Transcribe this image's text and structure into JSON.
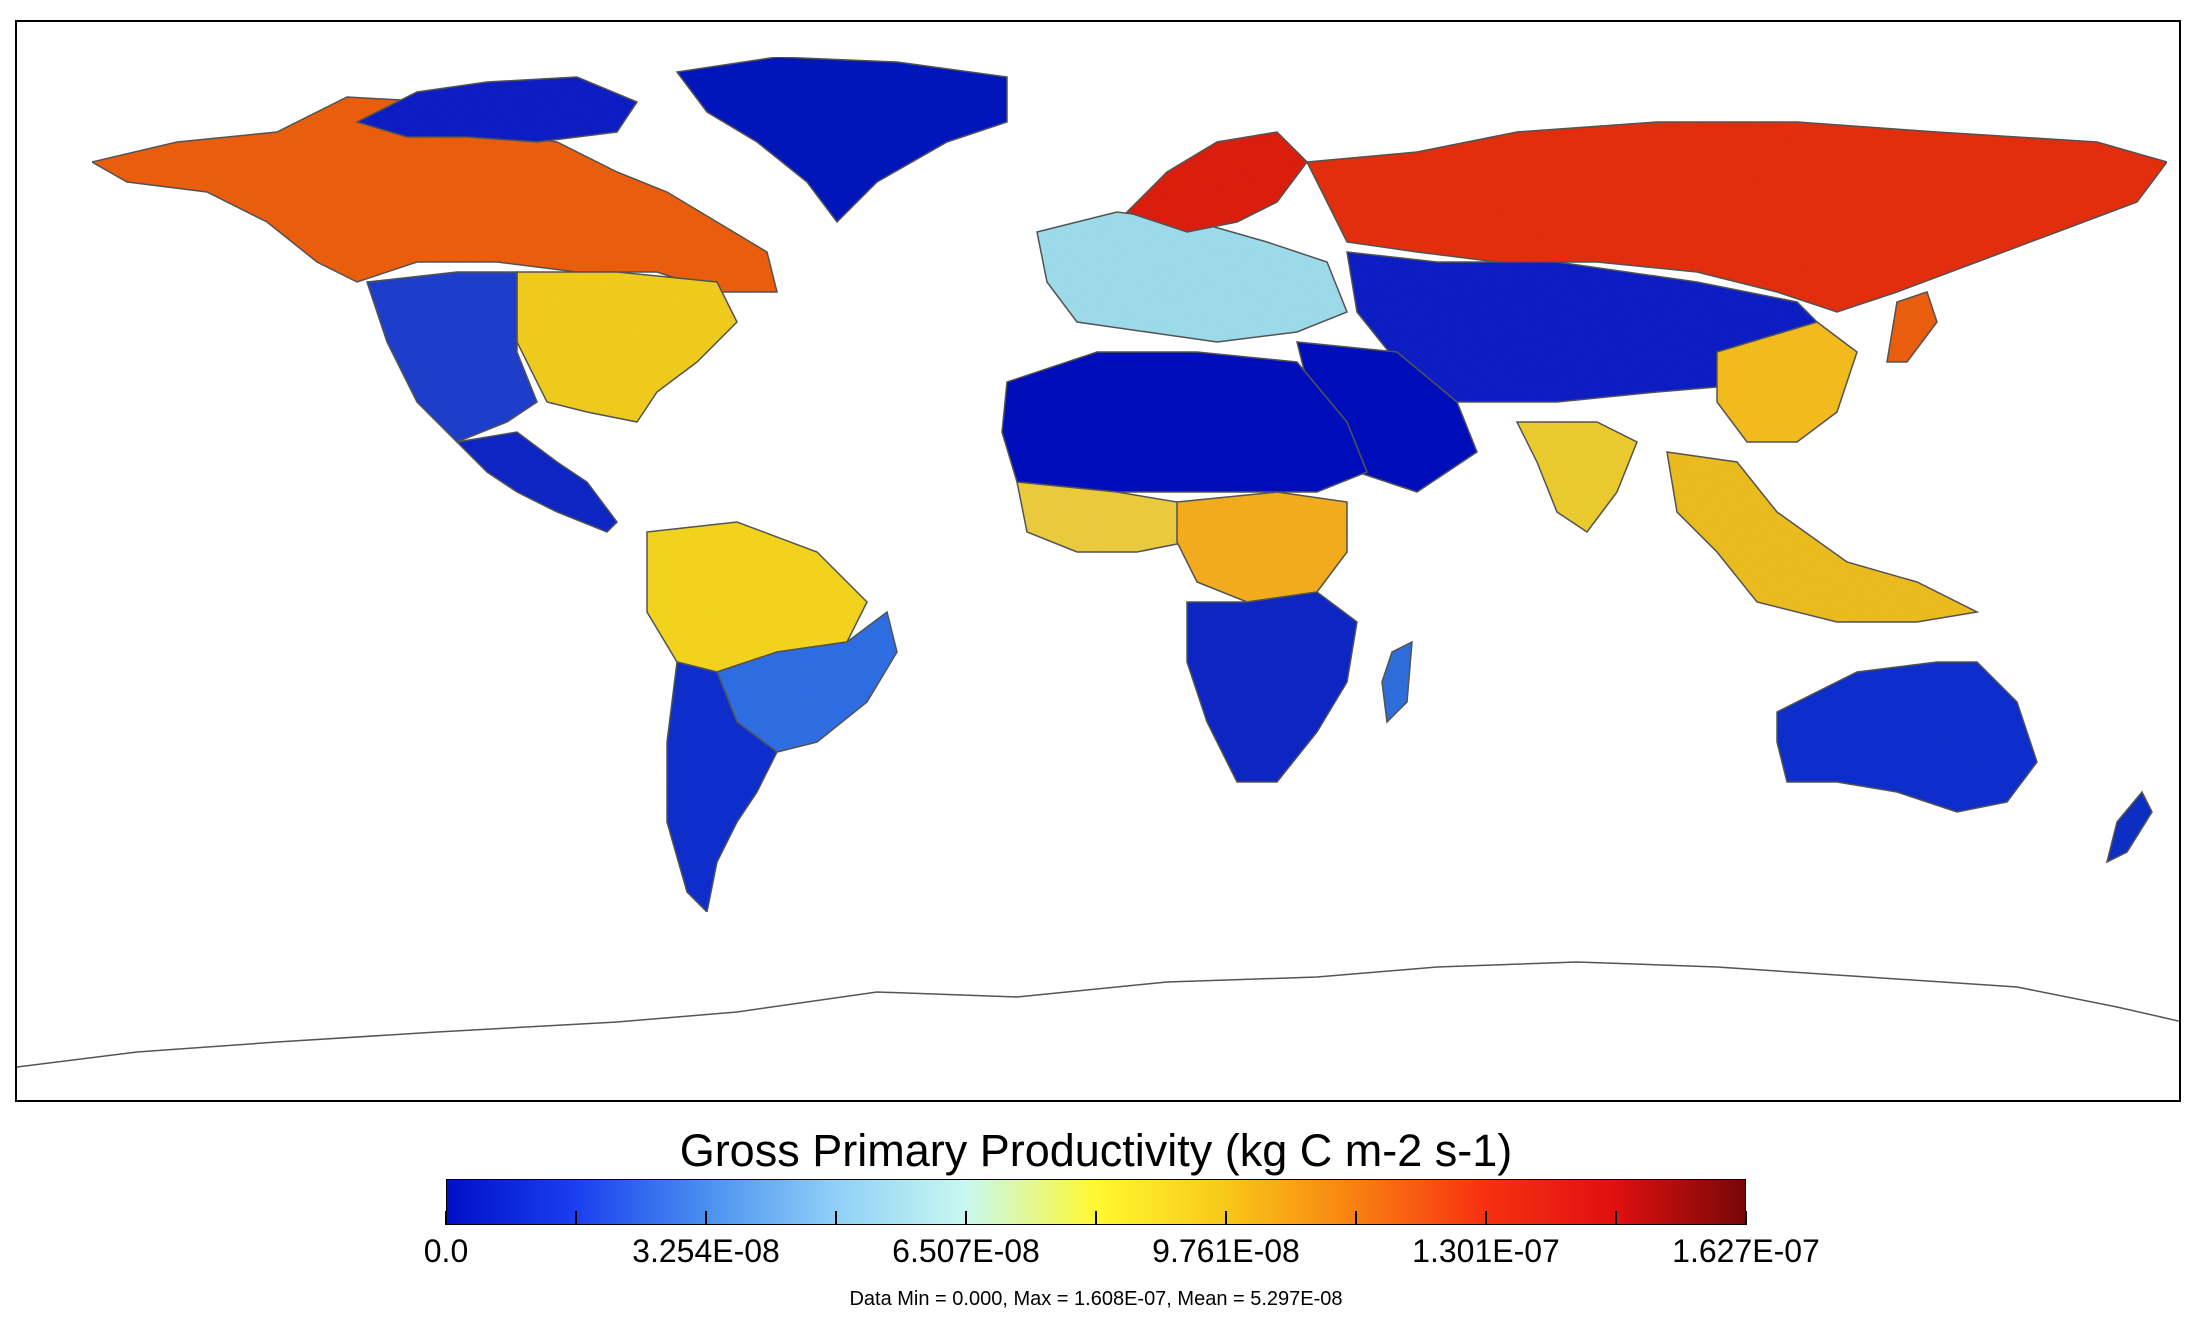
{
  "map": {
    "variable": "Gross Primary Productivity",
    "units": "kg C m-2 s-1",
    "projection": "equirectangular",
    "regions": [
      {
        "name": "north-america-boreal",
        "level": "high",
        "color": "#f06010"
      },
      {
        "name": "eastern-us",
        "level": "mid-high",
        "color": "#f5d020"
      },
      {
        "name": "western-us",
        "level": "low",
        "color": "#2040d0"
      },
      {
        "name": "greenland",
        "level": "zero",
        "color": "#0018c0"
      },
      {
        "name": "amazon",
        "level": "mid-high",
        "color": "#f8d820"
      },
      {
        "name": "brazil-east",
        "level": "low-mid",
        "color": "#3070e8"
      },
      {
        "name": "southern-south-america",
        "level": "low",
        "color": "#1030d0"
      },
      {
        "name": "sahara",
        "level": "zero",
        "color": "#0010c0"
      },
      {
        "name": "central-africa",
        "level": "mid-high",
        "color": "#f8b020"
      },
      {
        "name": "southern-africa",
        "level": "low",
        "color": "#0a28c8"
      },
      {
        "name": "europe",
        "level": "mid",
        "color": "#a0e0f0"
      },
      {
        "name": "scandinavia",
        "level": "high",
        "color": "#e02010"
      },
      {
        "name": "siberia",
        "level": "high",
        "color": "#e83010"
      },
      {
        "name": "central-asia",
        "level": "low",
        "color": "#0820c8"
      },
      {
        "name": "east-china",
        "level": "mid-high",
        "color": "#f8c020"
      },
      {
        "name": "southeast-asia",
        "level": "mid-high",
        "color": "#f0c020"
      },
      {
        "name": "australia",
        "level": "low",
        "color": "#1030d0"
      },
      {
        "name": "new-zealand",
        "level": "low",
        "color": "#1030c8"
      }
    ]
  },
  "legend": {
    "title": "Gross Primary Productivity (kg C m-2 s-1)",
    "min": 0.0,
    "max": 1.627e-07,
    "tick_labels": [
      "0.0",
      "3.254E-08",
      "6.507E-08",
      "9.761E-08",
      "1.301E-07",
      "1.627E-07"
    ],
    "gradient_colors": [
      "#0010c8",
      "#1a40f0",
      "#4a90f0",
      "#90d0f8",
      "#c8f8f0",
      "#fff830",
      "#f8c818",
      "#f88010",
      "#f83010",
      "#e01010",
      "#780808"
    ]
  },
  "stats": {
    "text": "Data Min = 0.000, Max = 1.608E-07, Mean = 5.297E-08"
  }
}
